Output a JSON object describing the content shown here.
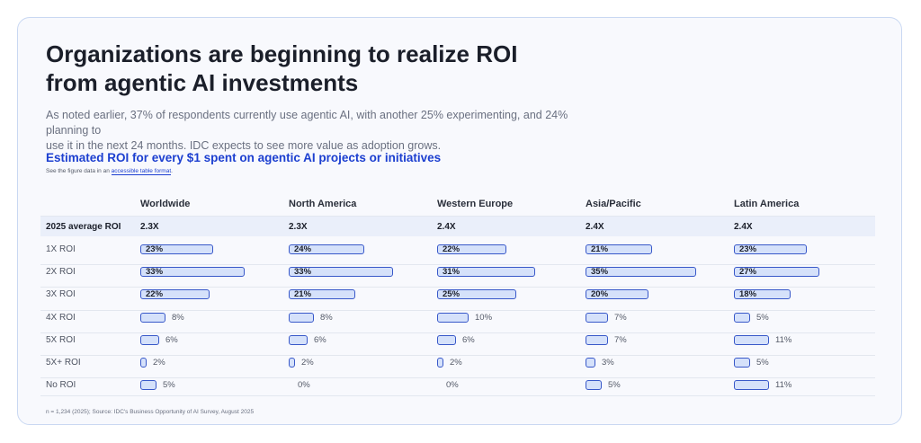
{
  "page": {
    "title_lines": [
      "Organizations are beginning to realize ROI",
      "from agentic AI investments"
    ],
    "description_lines": [
      "As noted earlier, 37% of respondents currently use agentic AI, with another 25% experimenting, and 24% planning to",
      "use it in the next 24 months. IDC expects to see more value as adoption grows."
    ],
    "note_prefix": "See the figure data in an",
    "note_link": "accessible table format",
    "note_suffix": ".",
    "footnote": "n = 1,234 (2025); Source: IDC's Business Opportunity of AI Survey, August 2025"
  },
  "chart_data": {
    "type": "table",
    "title": "Estimated ROI for every $1 spent on agentic AI projects or initiatives",
    "columns": [
      "Worldwide",
      "North America",
      "Western Europe",
      "Asia/Pacific",
      "Latin America"
    ],
    "average_row": {
      "label": "2025 average ROI",
      "values": [
        "2.3X",
        "2.3X",
        "2.4X",
        "2.4X",
        "2.4X"
      ]
    },
    "rows": [
      {
        "label": "1X ROI",
        "values": [
          23,
          24,
          22,
          21,
          23
        ]
      },
      {
        "label": "2X ROI",
        "values": [
          33,
          33,
          31,
          35,
          27
        ]
      },
      {
        "label": "3X ROI",
        "values": [
          22,
          21,
          25,
          20,
          18
        ]
      },
      {
        "label": "4X ROI",
        "values": [
          8,
          8,
          10,
          7,
          5
        ]
      },
      {
        "label": "5X ROI",
        "values": [
          6,
          6,
          6,
          7,
          11
        ]
      },
      {
        "label": "5X+ ROI",
        "values": [
          2,
          2,
          2,
          3,
          5
        ]
      },
      {
        "label": "No ROI",
        "values": [
          5,
          0,
          0,
          5,
          11
        ]
      }
    ],
    "unit": "%",
    "bar_fill_color": "#d5e1fa",
    "bar_border_color": "#3858c9"
  }
}
